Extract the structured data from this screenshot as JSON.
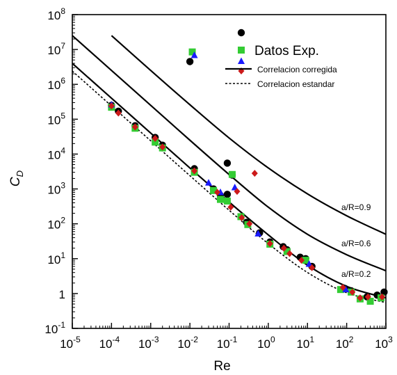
{
  "chart_data": {
    "type": "scatter",
    "title": "",
    "xlabel": "Re",
    "ylabel": "C_D",
    "xscale": "log",
    "yscale": "log",
    "xlim": [
      1e-05,
      1000
    ],
    "ylim": [
      0.1,
      100000000
    ],
    "x_ticks": [
      {
        "value": 1e-05,
        "base": "10",
        "exp": "-5"
      },
      {
        "value": 0.0001,
        "base": "10",
        "exp": "-4"
      },
      {
        "value": 0.001,
        "base": "10",
        "exp": "-3"
      },
      {
        "value": 0.01,
        "base": "10",
        "exp": "-2"
      },
      {
        "value": 0.1,
        "base": "10",
        "exp": "-1"
      },
      {
        "value": 1,
        "base": "10",
        "exp": "0"
      },
      {
        "value": 10,
        "base": "10",
        "exp": "1"
      },
      {
        "value": 100,
        "base": "10",
        "exp": "2"
      },
      {
        "value": 1000,
        "base": "10",
        "exp": "3"
      }
    ],
    "y_ticks": [
      {
        "value": 0.1,
        "base": "10",
        "exp": "-1"
      },
      {
        "value": 1,
        "base": "1",
        "exp": ""
      },
      {
        "value": 10,
        "base": "10",
        "exp": "1"
      },
      {
        "value": 100,
        "base": "10",
        "exp": "2"
      },
      {
        "value": 1000,
        "base": "10",
        "exp": "3"
      },
      {
        "value": 10000,
        "base": "10",
        "exp": "4"
      },
      {
        "value": 100000,
        "base": "10",
        "exp": "5"
      },
      {
        "value": 1000000,
        "base": "10",
        "exp": "6"
      },
      {
        "value": 10000000,
        "base": "10",
        "exp": "7"
      },
      {
        "value": 100000000,
        "base": "10",
        "exp": "8"
      }
    ],
    "legend": {
      "placement": "top-right",
      "entries": [
        {
          "label": "Datos Exp.",
          "kind": "markers"
        },
        {
          "label": "Correlacion corregida",
          "kind": "solid"
        },
        {
          "label": "Correlacion estandar",
          "kind": "dotted"
        }
      ]
    },
    "curve_labels": [
      {
        "text": "a/R=0.9",
        "series": "a/R=0.9"
      },
      {
        "text": "a/R=0.6",
        "series": "a/R=0.6"
      },
      {
        "text": "a/R=0.2",
        "series": "a/R=0.2"
      }
    ],
    "lines": [
      {
        "name": "a/R=0.9",
        "style": "solid",
        "x": [
          0.0001,
          0.001,
          0.01,
          0.1,
          1,
          10,
          100,
          1000
        ],
        "y": [
          25000000,
          2500000,
          260000,
          29000,
          4000,
          720,
          170,
          50
        ]
      },
      {
        "name": "a/R=0.6",
        "style": "solid",
        "x": [
          1e-05,
          0.0001,
          0.001,
          0.01,
          0.1,
          1,
          10,
          100,
          1000
        ],
        "y": [
          25000000,
          2500000,
          250000,
          25000,
          2600,
          300,
          50,
          13,
          4.5
        ]
      },
      {
        "name": "a/R=0.2",
        "style": "solid",
        "x": [
          1e-05,
          0.0001,
          0.001,
          0.01,
          0.1,
          1,
          10,
          100,
          1000
        ],
        "y": [
          4000000,
          400000,
          40000,
          4000,
          420,
          48,
          6.5,
          1.6,
          0.75
        ]
      },
      {
        "name": "Correlacion estandar",
        "style": "dotted",
        "x": [
          1e-05,
          0.0001,
          0.001,
          0.01,
          0.1,
          1,
          10,
          100,
          1000
        ],
        "y": [
          2400000,
          240000,
          24000,
          2400,
          245,
          27,
          4,
          1.05,
          0.55
        ]
      }
    ],
    "series": [
      {
        "marker": "circle",
        "color": "#000000",
        "points": [
          [
            0.0001,
            250000
          ],
          [
            0.00015,
            170000
          ],
          [
            0.0004,
            65000
          ],
          [
            0.0013,
            30000
          ],
          [
            0.002,
            18000
          ],
          [
            0.013,
            3800
          ],
          [
            0.04,
            1000
          ],
          [
            0.06,
            650
          ],
          [
            0.09,
            700
          ],
          [
            0.01,
            4500000
          ],
          [
            0.09,
            5500
          ],
          [
            0.12,
            2500
          ],
          [
            0.28,
            110
          ],
          [
            0.6,
            55
          ],
          [
            1.1,
            30
          ],
          [
            2.4,
            22
          ],
          [
            3,
            18
          ],
          [
            6.5,
            11
          ],
          [
            9,
            10
          ],
          [
            13,
            6
          ],
          [
            90,
            1.4
          ],
          [
            130,
            1.2
          ],
          [
            330,
            0.8
          ],
          [
            600,
            0.9
          ],
          [
            900,
            1.1
          ]
        ]
      },
      {
        "marker": "square",
        "color": "#33cc33",
        "points": [
          [
            0.0001,
            220000
          ],
          [
            0.0004,
            55000
          ],
          [
            0.0013,
            22000
          ],
          [
            0.002,
            15000
          ],
          [
            0.013,
            3000
          ],
          [
            0.04,
            900
          ],
          [
            0.06,
            500
          ],
          [
            0.09,
            450
          ],
          [
            0.0115,
            8500000
          ],
          [
            0.12,
            2600
          ],
          [
            0.2,
            160
          ],
          [
            0.3,
            95
          ],
          [
            1.1,
            26
          ],
          [
            3,
            16
          ],
          [
            9,
            9
          ],
          [
            70,
            1.3
          ],
          [
            130,
            1.1
          ],
          [
            220,
            0.7
          ],
          [
            400,
            0.6
          ],
          [
            750,
            0.75
          ]
        ]
      },
      {
        "marker": "triangle",
        "color": "#1a1aff",
        "points": [
          [
            0.0001,
            260000
          ],
          [
            0.013,
            6800000
          ],
          [
            0.03,
            1500
          ],
          [
            0.06,
            800
          ],
          [
            0.14,
            1100
          ],
          [
            0.55,
            52
          ],
          [
            11,
            7
          ],
          [
            95,
            1.3
          ]
        ]
      },
      {
        "marker": "diamond",
        "color": "#cc1a1a",
        "points": [
          [
            0.0001,
            240000
          ],
          [
            0.00015,
            150000
          ],
          [
            0.0004,
            60000
          ],
          [
            0.0013,
            28000
          ],
          [
            0.002,
            16000
          ],
          [
            0.013,
            3300
          ],
          [
            0.05,
            800
          ],
          [
            0.11,
            300
          ],
          [
            0.16,
            850
          ],
          [
            0.45,
            2800
          ],
          [
            0.21,
            150
          ],
          [
            0.33,
            100
          ],
          [
            1.1,
            27
          ],
          [
            2.5,
            20
          ],
          [
            3.5,
            14
          ],
          [
            7,
            9
          ],
          [
            13,
            5.5
          ],
          [
            80,
            1.5
          ],
          [
            140,
            1.1
          ],
          [
            220,
            0.75
          ],
          [
            350,
            0.8
          ],
          [
            800,
            0.8
          ]
        ]
      }
    ]
  }
}
